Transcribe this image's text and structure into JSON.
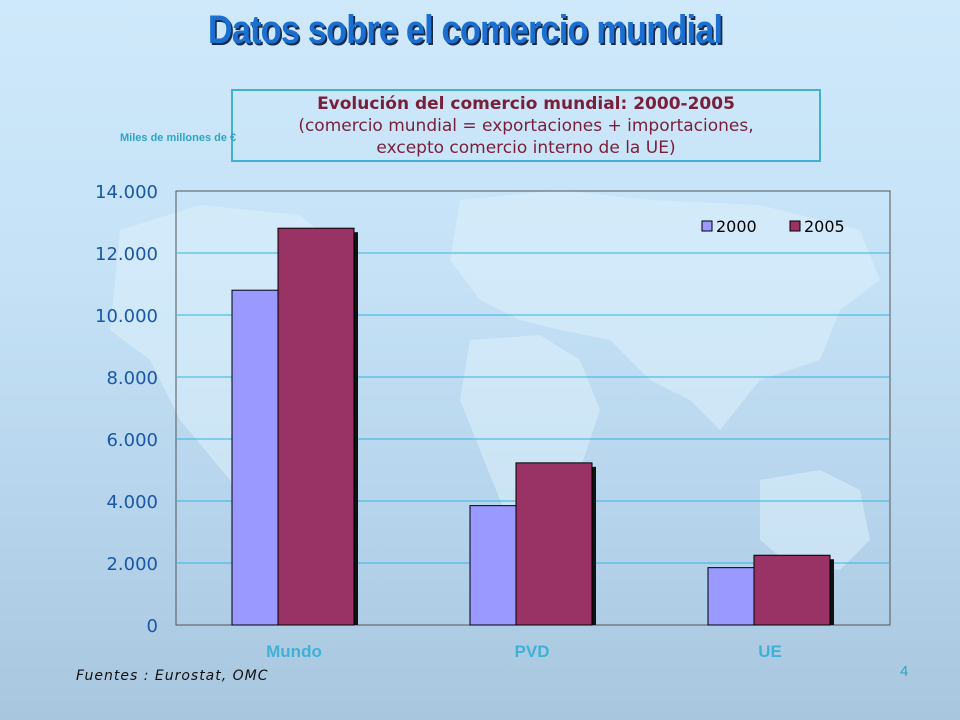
{
  "slide": {
    "title": "Datos sobre el comercio mundial",
    "source": "Fuentes : Eurostat, OMC",
    "page_number": "4"
  },
  "colors": {
    "series_2000": "#9999ff",
    "series_2005": "#993366",
    "gridline": "#33b5dd",
    "title": "#1b6fd0",
    "category_label": "#3fb1d6"
  },
  "chart_data": {
    "type": "bar",
    "title_lines": [
      "Evolución del comercio mundial: 2000-2005",
      "(comercio mundial = exportaciones + importaciones,",
      "excepto comercio interno de la UE)"
    ],
    "ylabel": "Miles de millones de €",
    "categories": [
      "Mundo",
      "PVD",
      "UE"
    ],
    "series": [
      {
        "name": "2000",
        "values": [
          10800,
          3850,
          1850
        ]
      },
      {
        "name": "2005",
        "values": [
          12800,
          5230,
          2250
        ]
      }
    ],
    "ylim": [
      0,
      14000
    ],
    "yticks": [
      0,
      2000,
      4000,
      6000,
      8000,
      10000,
      12000,
      14000
    ],
    "ytick_labels": [
      "0",
      "2.000",
      "4.000",
      "6.000",
      "8.000",
      "10.000",
      "12.000",
      "14.000"
    ],
    "grid": true,
    "legend_position": "top-right"
  }
}
